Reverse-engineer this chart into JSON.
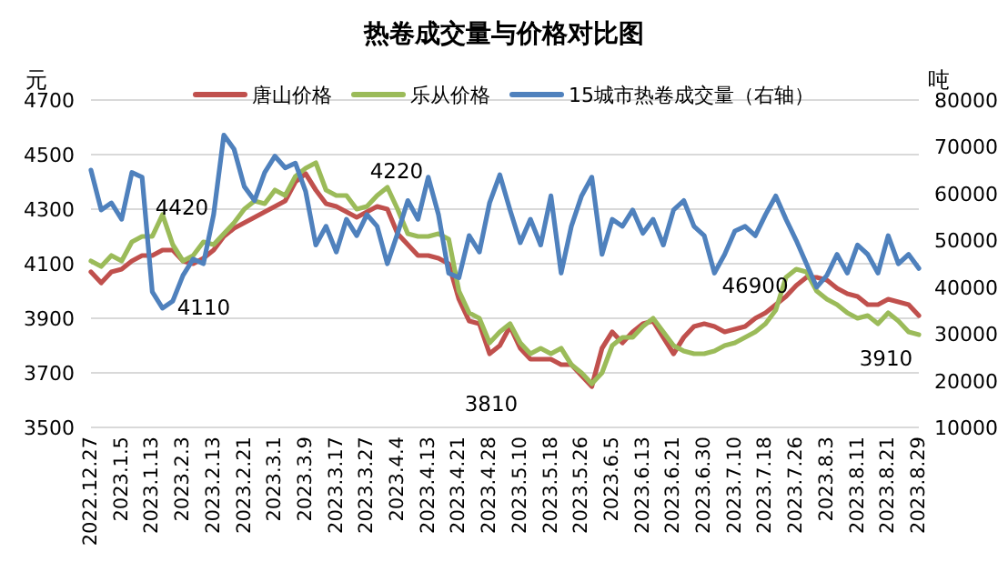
{
  "chart_data": {
    "type": "line",
    "title": "热卷成交量与价格对比图",
    "ylabel": "元",
    "y2label": "吨",
    "categories": [
      "2022.12.27",
      null,
      null,
      "2023.1.5",
      null,
      null,
      "2023.1.13",
      null,
      null,
      "2023.2.3",
      null,
      null,
      "2023.2.13",
      null,
      null,
      "2023.2.21",
      null,
      null,
      "2023.3.1",
      null,
      null,
      "2023.3.9",
      null,
      null,
      "2023.3.17",
      null,
      null,
      "2023.3.27",
      null,
      null,
      "2023.4.4",
      null,
      null,
      "2023.4.13",
      null,
      null,
      "2023.4.21",
      null,
      null,
      "2023.4.28",
      null,
      null,
      "2023.5.10",
      null,
      null,
      "2023.5.18",
      null,
      null,
      "2023.5.26",
      null,
      null,
      "2023.6.5",
      null,
      null,
      "2023.6.13",
      null,
      null,
      "2023.6.21",
      null,
      null,
      "2023.6.30",
      null,
      null,
      "2023.7.10",
      null,
      null,
      "2023.7.18",
      null,
      null,
      "2023.7.26",
      null,
      null,
      "2023.8.3",
      null,
      null,
      "2023.8.11",
      null,
      null,
      "2023.8.21",
      null,
      null,
      "2023.8.29"
    ],
    "series": [
      {
        "name": "唐山价格",
        "color": "#c0504d",
        "values": [
          4070,
          4030,
          4070,
          4080,
          4110,
          4130,
          4130,
          4150,
          4150,
          4110,
          4100,
          4120,
          4150,
          4200,
          4230,
          4250,
          4270,
          4290,
          4310,
          4330,
          4400,
          4430,
          4370,
          4320,
          4310,
          4290,
          4270,
          4290,
          4310,
          4300,
          4210,
          4170,
          4130,
          4130,
          4120,
          4100,
          3970,
          3890,
          3880,
          3770,
          3800,
          3870,
          3790,
          3750,
          3750,
          3750,
          3730,
          3730,
          3690,
          3650,
          3790,
          3850,
          3810,
          3850,
          3880,
          3890,
          3830,
          3770,
          3830,
          3870,
          3880,
          3870,
          3850,
          3860,
          3870,
          3900,
          3920,
          3950,
          3980,
          4020,
          4050,
          4050,
          4040,
          4010,
          3990,
          3980,
          3950,
          3950,
          3970,
          3960,
          3950,
          3910
        ]
      },
      {
        "name": "乐从价格",
        "color": "#9bbb59",
        "values": [
          4110,
          4090,
          4130,
          4110,
          4180,
          4200,
          4200,
          4280,
          4170,
          4110,
          4130,
          4180,
          4170,
          4210,
          4250,
          4300,
          4330,
          4320,
          4370,
          4350,
          4420,
          4450,
          4470,
          4370,
          4350,
          4350,
          4300,
          4310,
          4350,
          4380,
          4300,
          4210,
          4200,
          4200,
          4210,
          4190,
          4000,
          3920,
          3900,
          3810,
          3850,
          3880,
          3810,
          3770,
          3790,
          3770,
          3790,
          3730,
          3700,
          3660,
          3700,
          3800,
          3830,
          3830,
          3870,
          3900,
          3850,
          3800,
          3780,
          3770,
          3770,
          3780,
          3800,
          3810,
          3830,
          3850,
          3880,
          3930,
          4050,
          4080,
          4070,
          4000,
          3970,
          3950,
          3920,
          3900,
          3910,
          3880,
          3920,
          3890,
          3850,
          3840
        ]
      },
      {
        "name": "15城市热卷成交量（右轴）",
        "color": "#4f81bd",
        "axis": "y2",
        "values": [
          65000,
          56500,
          58000,
          54500,
          64500,
          63500,
          39000,
          35500,
          37000,
          42500,
          46000,
          45000,
          55500,
          72500,
          69500,
          61500,
          58500,
          64500,
          68000,
          65500,
          66500,
          60500,
          49000,
          53000,
          47500,
          54500,
          51000,
          55500,
          53000,
          45000,
          51500,
          58500,
          54500,
          63500,
          55500,
          43000,
          42000,
          51000,
          47500,
          58000,
          64000,
          56500,
          49500,
          54500,
          49000,
          59500,
          43000,
          53000,
          59500,
          63500,
          47000,
          54500,
          53000,
          56500,
          51500,
          54500,
          49000,
          56500,
          58500,
          53000,
          51000,
          43000,
          47000,
          52000,
          53000,
          51000,
          55500,
          59500,
          54500,
          50000,
          45000,
          40000,
          42500,
          47000,
          43000,
          49000,
          47000,
          43000,
          51000,
          45000,
          47000,
          44000
        ]
      }
    ],
    "ylim": [
      3500,
      4700
    ],
    "yticks": [
      3500,
      3700,
      3900,
      4100,
      4300,
      4500,
      4700
    ],
    "y2lim": [
      10000,
      80000
    ],
    "y2ticks": [
      10000,
      20000,
      30000,
      40000,
      50000,
      60000,
      70000,
      80000
    ],
    "grid": "y",
    "legend": "top",
    "annotations": [
      "4420",
      "4110",
      "4220",
      "46900",
      "3810",
      "3910"
    ]
  }
}
